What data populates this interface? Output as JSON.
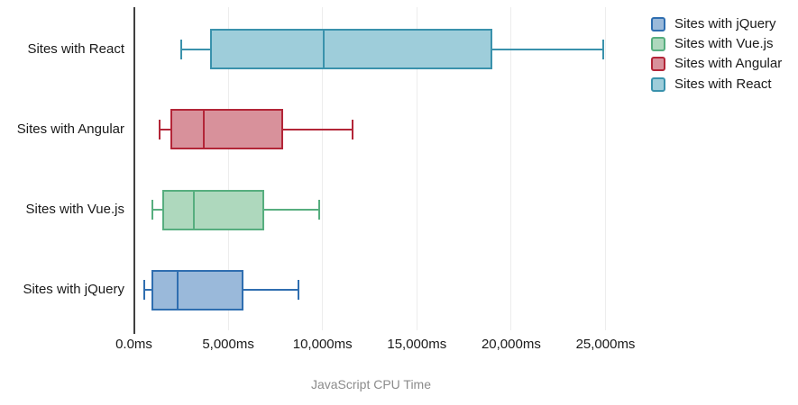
{
  "chart_data": {
    "type": "boxplot",
    "orientation": "horizontal",
    "title": "",
    "xlabel": "JavaScript CPU Time",
    "x_unit": "ms",
    "xlim": [
      0,
      26500
    ],
    "grid": true,
    "legend_position": "top-right",
    "x_ticks": [
      {
        "value": 0,
        "label": "0.0ms"
      },
      {
        "value": 5000,
        "label": "5,000ms"
      },
      {
        "value": 10000,
        "label": "10,000ms"
      },
      {
        "value": 15000,
        "label": "15,000ms"
      },
      {
        "value": 20000,
        "label": "20,000ms"
      },
      {
        "value": 25000,
        "label": "25,000ms"
      }
    ],
    "categories": [
      "Sites with React",
      "Sites with Angular",
      "Sites with Vue.js",
      "Sites with jQuery"
    ],
    "series": [
      {
        "name": "Sites with React",
        "min": 2500,
        "q1": 4050,
        "median": 10050,
        "q3": 19000,
        "max": 24900,
        "stroke": "#3a92ac",
        "fill": "#9ecdda"
      },
      {
        "name": "Sites with Angular",
        "min": 1350,
        "q1": 1925,
        "median": 3700,
        "q3": 7900,
        "max": 11600,
        "stroke": "#b32638",
        "fill": "#d8919b"
      },
      {
        "name": "Sites with Vue.js",
        "min": 1000,
        "q1": 1500,
        "median": 3200,
        "q3": 6925,
        "max": 9800,
        "stroke": "#57ae7f",
        "fill": "#aed8bd"
      },
      {
        "name": "Sites with jQuery",
        "min": 550,
        "q1": 925,
        "median": 2300,
        "q3": 5800,
        "max": 8725,
        "stroke": "#2f6eb0",
        "fill": "#9ab9da"
      }
    ],
    "legend": [
      {
        "label": "Sites with jQuery",
        "stroke": "#2f6eb0",
        "fill": "#9ab9da"
      },
      {
        "label": "Sites with Vue.js",
        "stroke": "#57ae7f",
        "fill": "#aed8bd"
      },
      {
        "label": "Sites with Angular",
        "stroke": "#b32638",
        "fill": "#d8919b"
      },
      {
        "label": "Sites with React",
        "stroke": "#3a92ac",
        "fill": "#9ecdda"
      }
    ],
    "colors": {
      "axis_line": "#3f3f3f",
      "gridline": "#ededed",
      "tick_label": "#1a1a1a",
      "axis_title": "#8b8b8b",
      "background": "#ffffff"
    }
  }
}
